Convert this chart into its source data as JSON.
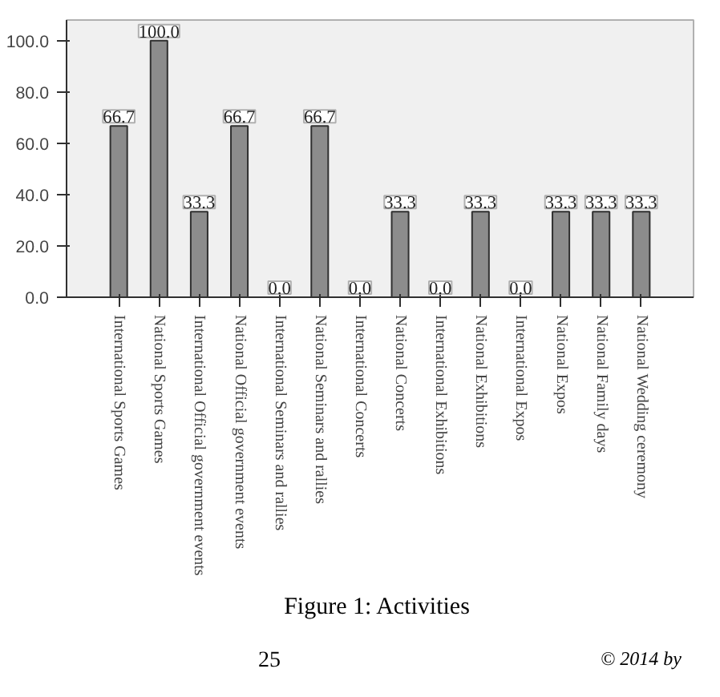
{
  "chart_data": {
    "type": "bar",
    "title": "Figure 1: Activities",
    "categories": [
      "International Sports Games",
      "National Sports Games",
      "International Official government events",
      "National Official government events",
      "International Seminars and rallies",
      "National Seminars and rallies",
      "International Concerts",
      "National Concerts",
      "International Exhibitions",
      "National Exhibitions",
      "International Expos",
      "National Expos",
      "National Family days",
      "National Wedding ceremony"
    ],
    "values": [
      66.7,
      100,
      33.3,
      66.7,
      0,
      66.7,
      0,
      33.3,
      0,
      33.3,
      0,
      33.3,
      33.3,
      33.3
    ],
    "value_labels": [
      "66.7",
      "100.0",
      "33.3",
      "66.7",
      "0.0",
      "66.7",
      "0.0",
      "33.3",
      "0.0",
      "33.3",
      "0.0",
      "33.3",
      "33.3",
      "33.3"
    ],
    "color": "#8c8c8c",
    "ylim": [
      0,
      108
    ],
    "yticks": [
      {
        "value": 0,
        "label": "0.0"
      },
      {
        "value": 20,
        "label": "20.0"
      },
      {
        "value": 40,
        "label": "40.0"
      },
      {
        "value": 60,
        "label": "60.0"
      },
      {
        "value": 80,
        "label": "80.0"
      },
      {
        "value": 100,
        "label": "100.0"
      }
    ],
    "grid": false,
    "annotations": [
      "25",
      "© 2014 by"
    ]
  }
}
